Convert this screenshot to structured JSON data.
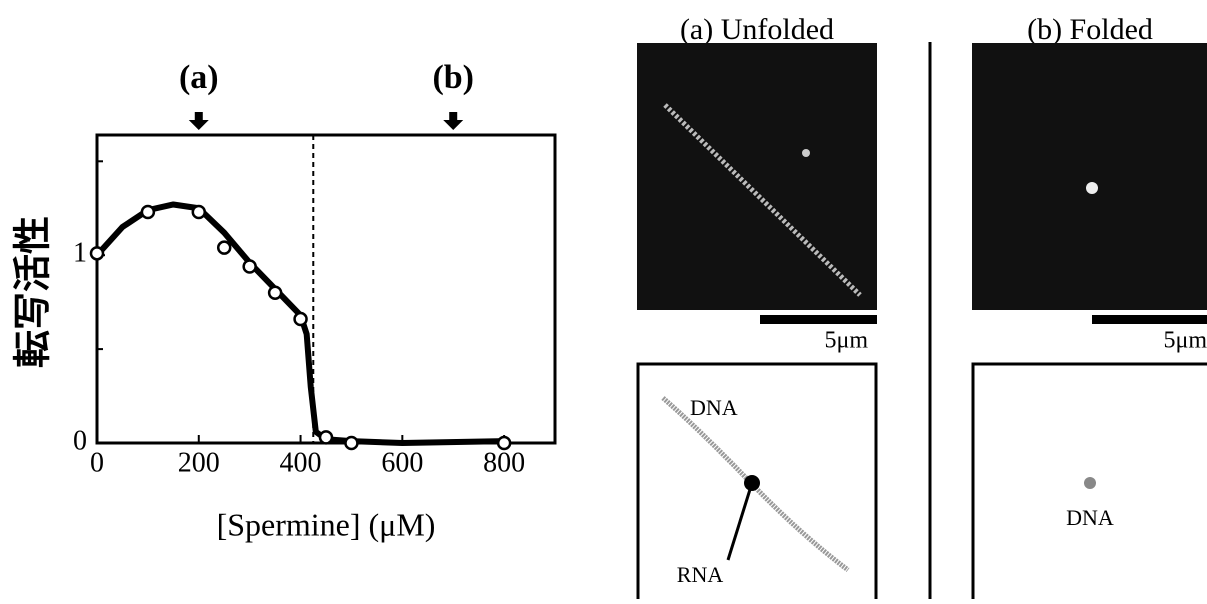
{
  "chart_data": {
    "type": "scatter",
    "ylabel": "転写活性",
    "xlabel": "[Spermine] (μM)",
    "x": [
      0,
      100,
      200,
      250,
      300,
      350,
      400,
      450,
      500,
      800
    ],
    "values": [
      1.01,
      1.23,
      1.23,
      1.04,
      0.94,
      0.8,
      0.66,
      0.03,
      0.0,
      0.0
    ],
    "fit": {
      "x": [
        0,
        50,
        100,
        150,
        200,
        250,
        300,
        350,
        400,
        412,
        420,
        430,
        450,
        500,
        600,
        800
      ],
      "values": [
        1.0,
        1.15,
        1.24,
        1.27,
        1.25,
        1.12,
        0.96,
        0.82,
        0.68,
        0.58,
        0.3,
        0.06,
        0.02,
        0.01,
        0.0,
        0.01
      ]
    },
    "threshold_x": 425,
    "annotations": [
      {
        "label": "(a)",
        "x": 200
      },
      {
        "label": "(b)",
        "x": 700
      }
    ],
    "xlim": [
      0,
      900
    ],
    "xticks": [
      0,
      200,
      400,
      600,
      800
    ],
    "ylim": [
      0,
      1.64
    ],
    "yticks": [
      0,
      1
    ],
    "minor_yticks": [
      0.5,
      1.5
    ]
  },
  "panels": [
    {
      "title": "(a) Unfolded",
      "scale": "5μm",
      "labels": [
        "DNA",
        "RNA"
      ]
    },
    {
      "title": "(b) Folded",
      "scale": "5μm",
      "labels": [
        "DNA"
      ]
    }
  ]
}
